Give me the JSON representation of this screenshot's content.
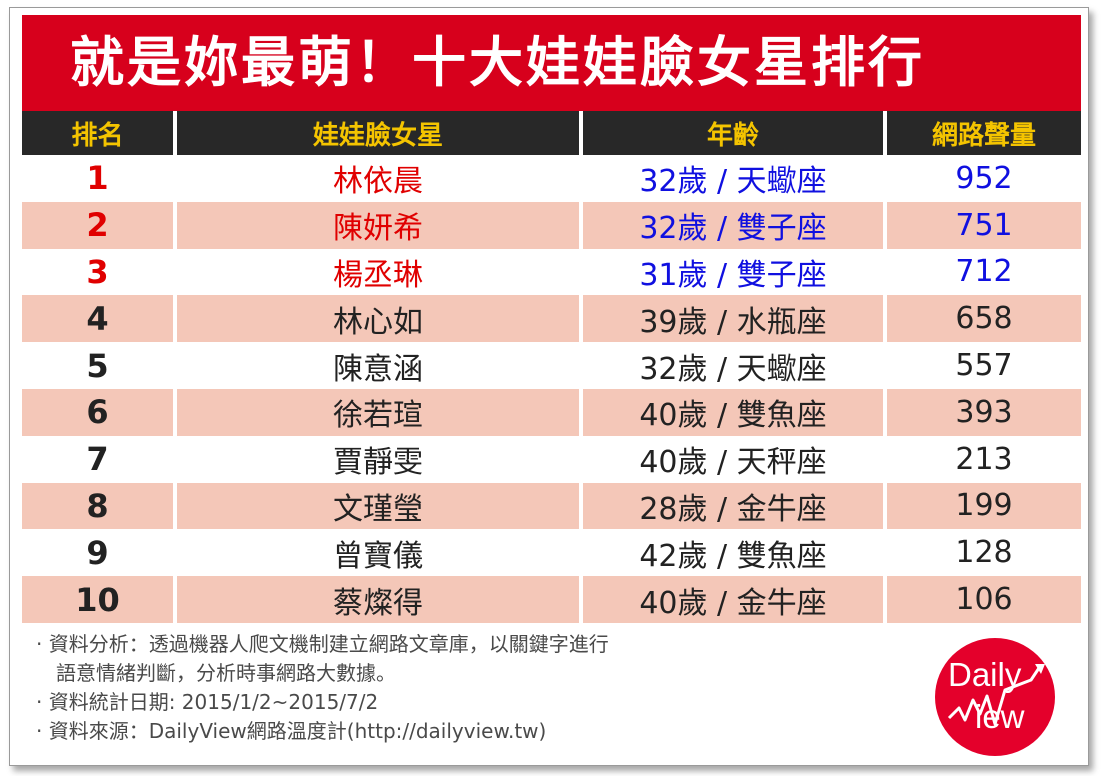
{
  "title": "就是妳最萌！十大娃娃臉女星排行",
  "headers": {
    "rank": "排名",
    "name": "娃娃臉女星",
    "age": "年齡",
    "volume": "網路聲量"
  },
  "rows": [
    {
      "rank": "1",
      "name": "林依晨",
      "age": "32歲 / 天蠍座",
      "volume": "952"
    },
    {
      "rank": "2",
      "name": "陳妍希",
      "age": "32歲 / 雙子座",
      "volume": "751"
    },
    {
      "rank": "3",
      "name": "楊丞琳",
      "age": "31歲 / 雙子座",
      "volume": "712"
    },
    {
      "rank": "4",
      "name": "林心如",
      "age": "39歲 / 水瓶座",
      "volume": "658"
    },
    {
      "rank": "5",
      "name": "陳意涵",
      "age": "32歲 / 天蠍座",
      "volume": "557"
    },
    {
      "rank": "6",
      "name": "徐若瑄",
      "age": "40歲 / 雙魚座",
      "volume": "393"
    },
    {
      "rank": "7",
      "name": "賈靜雯",
      "age": "40歲 / 天秤座",
      "volume": "213"
    },
    {
      "rank": "8",
      "name": "文瑾瑩",
      "age": "28歲 / 金牛座",
      "volume": "199"
    },
    {
      "rank": "9",
      "name": "曾寶儀",
      "age": "42歲 / 雙魚座",
      "volume": "128"
    },
    {
      "rank": "10",
      "name": "蔡燦得",
      "age": "40歲 / 金牛座",
      "volume": "106"
    }
  ],
  "notes": {
    "line1": "· 資料分析：透過機器人爬文機制建立網路文章庫，以關鍵字進行",
    "line2": "語意情緒判斷，分析時事網路大數據。",
    "line3": "· 資料統計日期: 2015/1/2~2015/7/2",
    "line4": "· 資料來源：DailyView網路溫度計(http://dailyview.tw)"
  },
  "logo": {
    "word1": "Daily",
    "word2": "iew",
    "icon": "dailyview-logo"
  },
  "colors": {
    "title_bg": "#d7001c",
    "header_bg": "#282828",
    "header_text": "#f4c400",
    "alt_row": "#f4c7b8",
    "top3_rank": "#e00000",
    "top3_value": "#1010e0"
  }
}
